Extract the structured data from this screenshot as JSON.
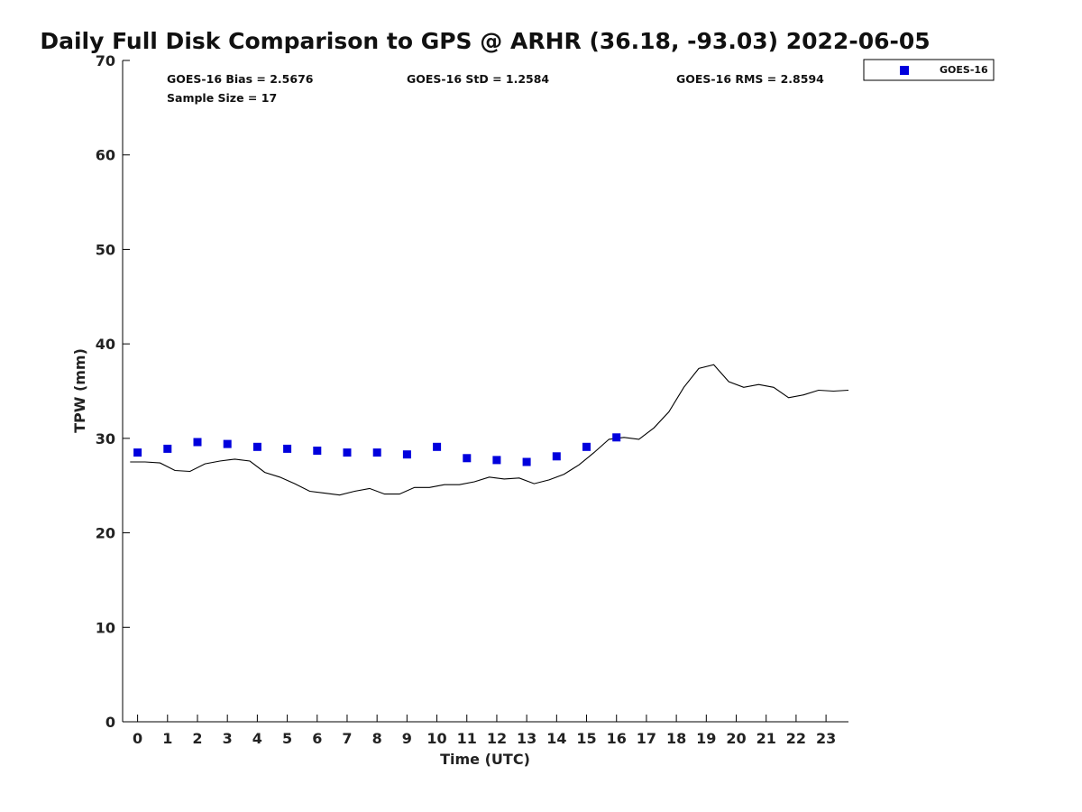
{
  "chart_data": {
    "type": "scatter",
    "title": "Daily Full Disk Comparison to GPS @ ARHR (36.18, -93.03) 2022-06-05",
    "xlabel": "Time (UTC)",
    "ylabel": "TPW (mm)",
    "xlim": [
      -0.5,
      23.75
    ],
    "ylim": [
      0,
      70
    ],
    "xticks": [
      0,
      1,
      2,
      3,
      4,
      5,
      6,
      7,
      8,
      9,
      10,
      11,
      12,
      13,
      14,
      15,
      16,
      17,
      18,
      19,
      20,
      21,
      22,
      23
    ],
    "yticks": [
      0,
      10,
      20,
      30,
      40,
      50,
      60,
      70
    ],
    "grid": false,
    "legend_position": "top-right",
    "stats": {
      "bias": "GOES-16 Bias = 2.5676",
      "std": "GOES-16 StD = 1.2584",
      "rms": "GOES-16 RMS = 2.8594",
      "sample": "Sample Size = 17"
    },
    "series": [
      {
        "name": "GOES-16",
        "kind": "markers",
        "color": "#0000dd",
        "x": [
          0.0,
          1.0,
          2.0,
          3.0,
          4.0,
          5.0,
          6.0,
          7.0,
          8.0,
          9.0,
          10.0,
          11.0,
          12.0,
          13.0,
          14.0,
          15.0,
          16.0
        ],
        "y": [
          28.5,
          28.9,
          29.6,
          29.4,
          29.1,
          28.9,
          28.7,
          28.5,
          28.5,
          28.3,
          29.1,
          27.9,
          27.7,
          27.5,
          28.1,
          29.1,
          30.1
        ]
      },
      {
        "kind": "line",
        "color": "#000000",
        "x": [
          -0.25,
          0.25,
          0.75,
          1.25,
          1.75,
          2.25,
          2.75,
          3.25,
          3.75,
          4.25,
          4.75,
          5.25,
          5.75,
          6.25,
          6.75,
          7.25,
          7.75,
          8.25,
          8.75,
          9.25,
          9.75,
          10.25,
          10.75,
          11.25,
          11.75,
          12.25,
          12.75,
          13.25,
          13.75,
          14.25,
          14.75,
          15.25,
          15.75,
          16.25,
          16.75,
          17.25,
          17.75,
          18.25,
          18.75,
          19.25,
          19.75,
          20.25,
          20.75,
          21.25,
          21.75,
          22.25,
          22.75,
          23.25,
          23.75
        ],
        "y": [
          27.5,
          27.5,
          27.4,
          26.6,
          26.5,
          27.3,
          27.6,
          27.8,
          27.6,
          26.4,
          25.9,
          25.2,
          24.4,
          24.2,
          24.0,
          24.4,
          24.7,
          24.1,
          24.1,
          24.8,
          24.8,
          25.1,
          25.1,
          25.4,
          25.9,
          25.7,
          25.8,
          25.2,
          25.6,
          26.2,
          27.2,
          28.5,
          29.9,
          30.1,
          29.9,
          31.1,
          32.8,
          35.4,
          37.4,
          37.8,
          36.0,
          35.4,
          35.7,
          35.4,
          34.3,
          34.6,
          35.1,
          35.0,
          35.1
        ]
      }
    ]
  }
}
